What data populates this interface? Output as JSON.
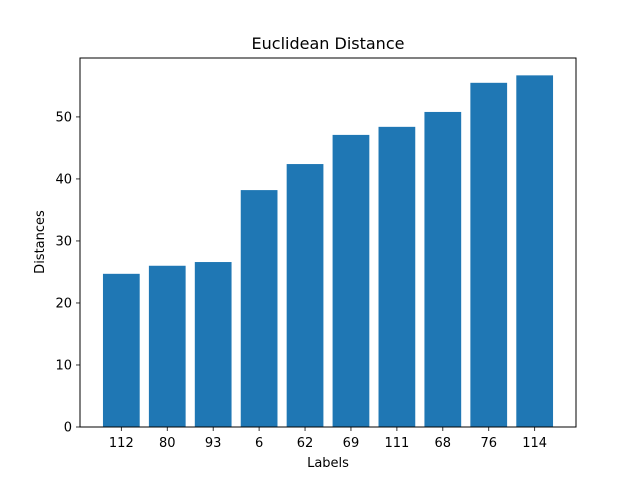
{
  "chart_data": {
    "type": "bar",
    "title": "Euclidean Distance",
    "xlabel": "Labels",
    "ylabel": "Distances",
    "categories": [
      "112",
      "80",
      "93",
      "6",
      "62",
      "69",
      "111",
      "68",
      "76",
      "114"
    ],
    "values": [
      24.7,
      26.0,
      26.6,
      38.2,
      42.4,
      47.1,
      48.4,
      50.8,
      55.5,
      56.7
    ],
    "ylim": [
      0,
      59.5
    ],
    "yticks": [
      0,
      10,
      20,
      30,
      40,
      50
    ],
    "bar_color": "#1f77b4",
    "grid": false,
    "legend": "none"
  }
}
